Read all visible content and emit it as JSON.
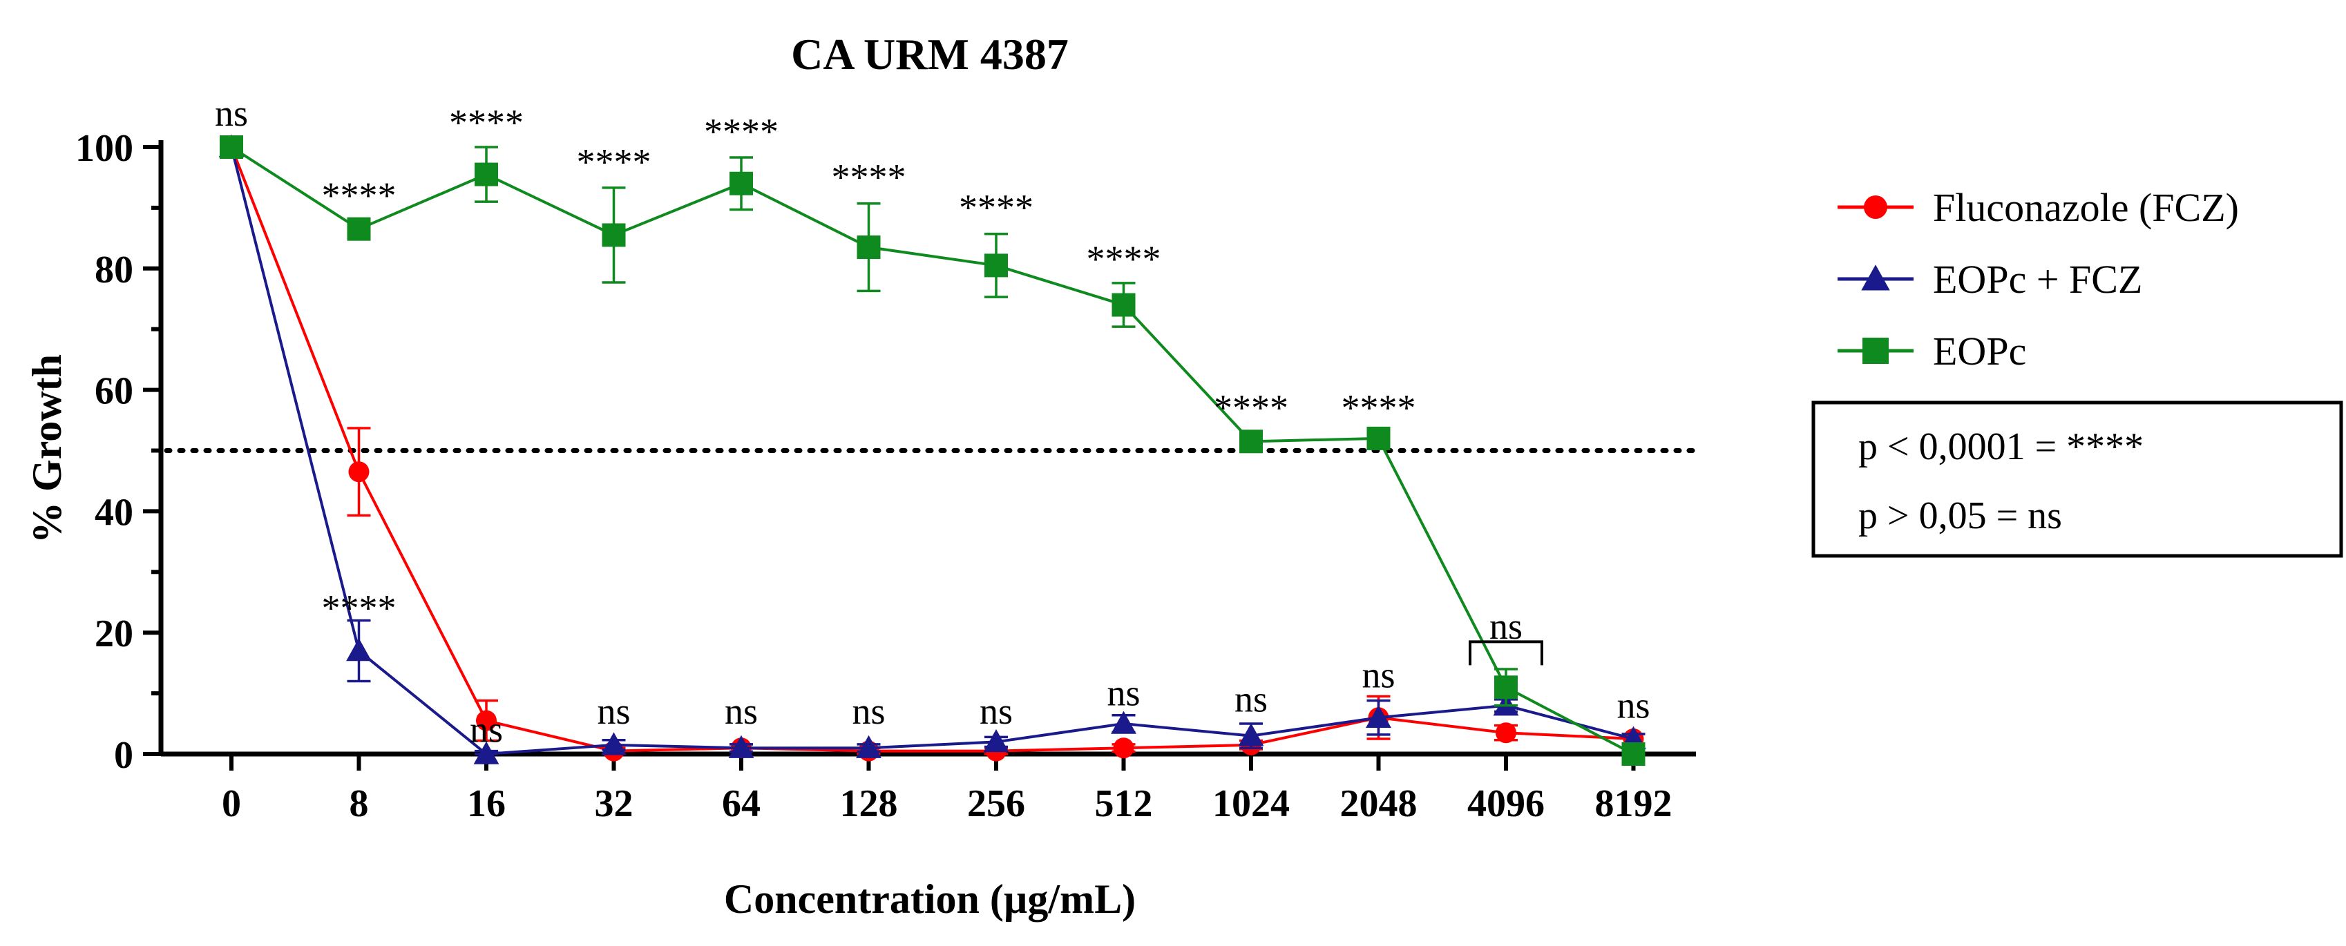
{
  "chart_data": {
    "type": "line",
    "title": "CA URM 4387",
    "xlabel": "Concentration (µg/mL)",
    "ylabel": "% Growth",
    "categories": [
      "0",
      "8",
      "16",
      "32",
      "64",
      "128",
      "256",
      "512",
      "1024",
      "2048",
      "4096",
      "8192"
    ],
    "ylim": [
      0,
      100
    ],
    "yticks": [
      0,
      20,
      40,
      60,
      80,
      100
    ],
    "reference_line": {
      "y": 50,
      "style": "dotted"
    },
    "series": [
      {
        "name": "Fluconazole (FCZ)",
        "color": "#ff0000",
        "marker": "circle",
        "values": [
          100,
          46.5,
          5.5,
          0.5,
          1.0,
          0.5,
          0.5,
          1.0,
          1.5,
          6.0,
          3.5,
          2.5
        ],
        "errors": [
          0,
          7.2,
          3.3,
          0.5,
          0.6,
          0.5,
          0.5,
          0.6,
          0.7,
          3.5,
          1.2,
          0.8
        ]
      },
      {
        "name": "EOPc + FCZ",
        "color": "#1a1a8c",
        "marker": "triangle",
        "values": [
          100,
          17.0,
          0.0,
          1.5,
          1.0,
          1.0,
          2.0,
          5.0,
          3.0,
          6.0,
          8.0,
          2.5
        ],
        "errors": [
          0,
          5.0,
          0.5,
          0.8,
          0.6,
          0.6,
          0.8,
          1.4,
          2.0,
          2.8,
          1.0,
          0.8
        ]
      },
      {
        "name": "EOPc",
        "color": "#0f8a1e",
        "marker": "square",
        "values": [
          100,
          86.5,
          95.5,
          85.5,
          94.0,
          83.5,
          80.5,
          74.0,
          51.5,
          52.0,
          11.0,
          0.0
        ],
        "errors": [
          0,
          1.2,
          4.5,
          7.8,
          4.3,
          7.2,
          5.2,
          3.6,
          1.0,
          1.0,
          3.0,
          0.3
        ]
      }
    ],
    "annotations": [
      {
        "category": "0",
        "label": "ns",
        "y": 103.5
      },
      {
        "category": "8",
        "label": "****",
        "y": 90
      },
      {
        "category": "16",
        "label": "****",
        "y": 102
      },
      {
        "category": "32",
        "label": "****",
        "y": 95.5
      },
      {
        "category": "64",
        "label": "****",
        "y": 100.5
      },
      {
        "category": "128",
        "label": "****",
        "y": 93
      },
      {
        "category": "256",
        "label": "****",
        "y": 88
      },
      {
        "category": "512",
        "label": "****",
        "y": 79.5
      },
      {
        "category": "1024",
        "label": "****",
        "y": 55
      },
      {
        "category": "2048",
        "label": "****",
        "y": 55
      },
      {
        "category": "8",
        "label": "****",
        "y": 22
      },
      {
        "category": "16",
        "label": "ns",
        "y": 2
      },
      {
        "category": "32",
        "label": "ns",
        "y": 5
      },
      {
        "category": "64",
        "label": "ns",
        "y": 5
      },
      {
        "category": "128",
        "label": "ns",
        "y": 5
      },
      {
        "category": "256",
        "label": "ns",
        "y": 5
      },
      {
        "category": "512",
        "label": "ns",
        "y": 8
      },
      {
        "category": "1024",
        "label": "ns",
        "y": 7
      },
      {
        "category": "2048",
        "label": "ns",
        "y": 11
      },
      {
        "category": "4096",
        "label": "ns",
        "y": 19
      },
      {
        "category": "8192",
        "label": "ns",
        "y": 6
      }
    ],
    "bracket": {
      "category": "4096",
      "y": 18.5
    },
    "significance_legend": [
      "p < 0,0001 = ****",
      "p > 0,05 = ns"
    ],
    "legend_position": "right"
  }
}
